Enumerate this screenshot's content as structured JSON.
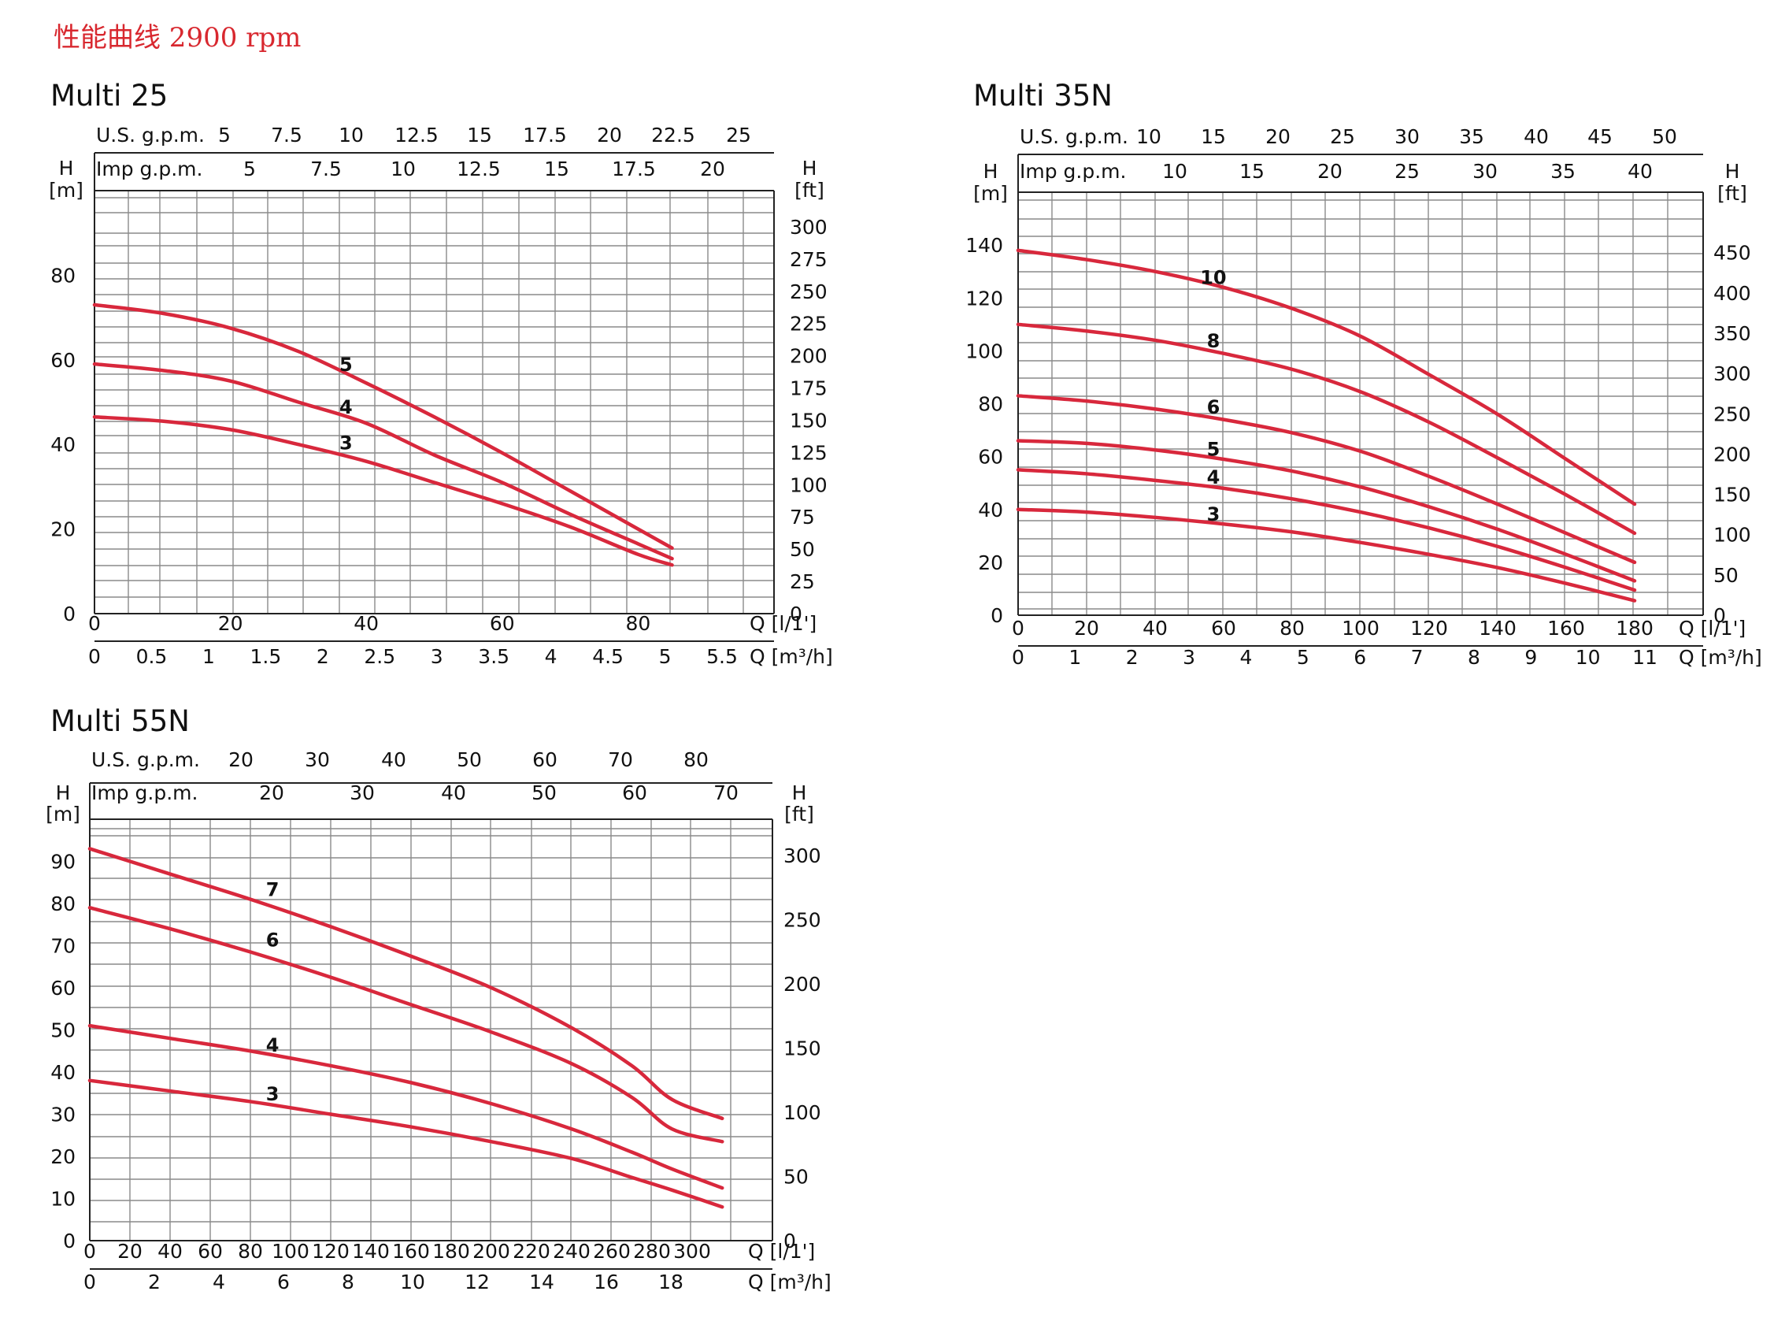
{
  "page_title": "性能曲线 2900 rpm",
  "colors": {
    "curve": "#d8283c",
    "grid": "#8a8a8a",
    "text": "#111111",
    "title": "#d8282f"
  },
  "chart_data": [
    {
      "type": "line",
      "title": "Multi 25",
      "ylabel_m": "H",
      "ylabel_m_unit": "[m]",
      "ylabel_ft": "H",
      "ylabel_ft_unit": "[ft]",
      "xlabel_lmin": "Q [l/1']",
      "xlabel_m3h": "Q [m³/h]",
      "usgpm_label": "U.S. g.p.m.",
      "impgpm_label": "Imp g.p.m.",
      "xlim": [
        0,
        100
      ],
      "ylim": [
        0,
        100
      ],
      "y_ticks_m": [
        "0",
        "20",
        "40",
        "60",
        "80"
      ],
      "y_ticks_m_values": [
        0,
        20,
        40,
        60,
        80
      ],
      "ft_ticks": [
        "0",
        "25",
        "50",
        "75",
        "100",
        "125",
        "150",
        "175",
        "200",
        "225",
        "250",
        "275",
        "300"
      ],
      "ft_ticks_values": [
        0,
        25,
        50,
        75,
        100,
        125,
        150,
        175,
        200,
        225,
        250,
        275,
        300
      ],
      "x_ticks_lmin": [
        "0",
        "20",
        "40",
        "60",
        "80"
      ],
      "x_ticks_lmin_values": [
        0,
        20,
        40,
        60,
        80
      ],
      "x_ticks_m3h": [
        "0",
        "0.5",
        "1",
        "1.5",
        "2",
        "2.5",
        "3",
        "3.5",
        "4",
        "4.5",
        "5",
        "5.5"
      ],
      "x_ticks_m3h_values": [
        0,
        0.5,
        1,
        1.5,
        2,
        2.5,
        3,
        3.5,
        4,
        4.5,
        5,
        5.5
      ],
      "usgpm_ticks": [
        "5",
        "7.5",
        "10",
        "12.5",
        "15",
        "17.5",
        "20",
        "22.5",
        "25"
      ],
      "usgpm_ticks_values": [
        5,
        7.5,
        10,
        12.5,
        15,
        17.5,
        20,
        22.5,
        25
      ],
      "impgpm_ticks": [
        "5",
        "7.5",
        "10",
        "12.5",
        "15",
        "17.5",
        "20"
      ],
      "impgpm_ticks_values": [
        5,
        7.5,
        10,
        12.5,
        15,
        17.5,
        20
      ],
      "series": [
        {
          "name": "5",
          "label_at": [
            37,
            59
          ],
          "x": [
            0,
            10,
            20,
            30,
            40,
            50,
            60,
            70,
            80,
            85
          ],
          "y": [
            73,
            71,
            67.5,
            62,
            54.5,
            46.5,
            38,
            29,
            20,
            15.5
          ]
        },
        {
          "name": "4",
          "label_at": [
            37,
            49
          ],
          "x": [
            0,
            10,
            20,
            30,
            40,
            50,
            60,
            70,
            80,
            85
          ],
          "y": [
            59,
            57.5,
            55,
            50,
            45,
            37.5,
            31,
            23.5,
            16.5,
            13
          ]
        },
        {
          "name": "3",
          "label_at": [
            37,
            40.5
          ],
          "x": [
            0,
            10,
            20,
            30,
            40,
            50,
            60,
            70,
            80,
            85
          ],
          "y": [
            46.5,
            45.5,
            43.5,
            40,
            36,
            31,
            26,
            20.5,
            14,
            11.5
          ]
        }
      ]
    },
    {
      "type": "line",
      "title": "Multi 35N",
      "ylabel_m": "H",
      "ylabel_m_unit": "[m]",
      "ylabel_ft": "H",
      "ylabel_ft_unit": "[ft]",
      "xlabel_lmin": "Q [l/1']",
      "xlabel_m3h": "Q [m³/h]",
      "usgpm_label": "U.S. g.p.m.",
      "impgpm_label": "Imp g.p.m.",
      "xlim": [
        0,
        200
      ],
      "ylim": [
        0,
        160
      ],
      "y_ticks_m": [
        "0",
        "20",
        "40",
        "60",
        "80",
        "100",
        "120",
        "140"
      ],
      "y_ticks_m_values": [
        0,
        20,
        40,
        60,
        80,
        100,
        120,
        140
      ],
      "ft_ticks": [
        "0",
        "50",
        "100",
        "150",
        "200",
        "250",
        "300",
        "350",
        "400",
        "450"
      ],
      "ft_ticks_values": [
        0,
        50,
        100,
        150,
        200,
        250,
        300,
        350,
        400,
        450
      ],
      "x_ticks_lmin": [
        "0",
        "20",
        "40",
        "60",
        "80",
        "100",
        "120",
        "140",
        "160",
        "180"
      ],
      "x_ticks_lmin_values": [
        0,
        20,
        40,
        60,
        80,
        100,
        120,
        140,
        160,
        180
      ],
      "x_ticks_m3h": [
        "0",
        "1",
        "2",
        "3",
        "4",
        "5",
        "6",
        "7",
        "8",
        "9",
        "10",
        "11"
      ],
      "x_ticks_m3h_values": [
        0,
        1,
        2,
        3,
        4,
        5,
        6,
        7,
        8,
        9,
        10,
        11
      ],
      "usgpm_ticks": [
        "10",
        "15",
        "20",
        "25",
        "30",
        "35",
        "40",
        "45",
        "50"
      ],
      "usgpm_ticks_values": [
        10,
        15,
        20,
        25,
        30,
        35,
        40,
        45,
        50
      ],
      "impgpm_ticks": [
        "10",
        "15",
        "20",
        "25",
        "30",
        "35",
        "40"
      ],
      "impgpm_ticks_values": [
        10,
        15,
        20,
        25,
        30,
        35,
        40
      ],
      "series": [
        {
          "name": "10",
          "label_at": [
            57,
            128
          ],
          "x": [
            0,
            20,
            40,
            60,
            80,
            100,
            120,
            140,
            160,
            180
          ],
          "y": [
            138,
            134.5,
            130,
            124,
            116,
            105.5,
            91,
            76,
            59,
            42
          ]
        },
        {
          "name": "8",
          "label_at": [
            57,
            104
          ],
          "x": [
            0,
            20,
            40,
            60,
            80,
            100,
            120,
            140,
            160,
            180
          ],
          "y": [
            110,
            107.5,
            104,
            99,
            93,
            84.5,
            73,
            59.5,
            45.5,
            31
          ]
        },
        {
          "name": "6",
          "label_at": [
            57,
            79
          ],
          "x": [
            0,
            20,
            40,
            60,
            80,
            100,
            120,
            140,
            160,
            180
          ],
          "y": [
            83,
            81,
            78,
            74,
            69,
            62,
            52.5,
            42,
            31,
            20
          ]
        },
        {
          "name": "5",
          "label_at": [
            57,
            63
          ],
          "x": [
            0,
            20,
            40,
            60,
            80,
            100,
            120,
            140,
            160,
            180
          ],
          "y": [
            66,
            65,
            62.5,
            59,
            54.5,
            48.5,
            41,
            32.5,
            23,
            13
          ]
        },
        {
          "name": "4",
          "label_at": [
            57,
            52.5
          ],
          "x": [
            0,
            20,
            40,
            60,
            80,
            100,
            120,
            140,
            160,
            180
          ],
          "y": [
            55,
            53.5,
            51,
            48,
            44,
            39,
            33,
            26,
            18,
            9.5
          ]
        },
        {
          "name": "3",
          "label_at": [
            57,
            38.5
          ],
          "x": [
            0,
            20,
            40,
            60,
            80,
            100,
            120,
            140,
            160,
            180
          ],
          "y": [
            40,
            39,
            37,
            34.5,
            31.5,
            27.5,
            23,
            18,
            12,
            5.5
          ]
        }
      ]
    },
    {
      "type": "line",
      "title": "Multi 55N",
      "ylabel_m": "H",
      "ylabel_m_unit": "[m]",
      "ylabel_ft": "H",
      "ylabel_ft_unit": "[ft]",
      "xlabel_lmin": "Q [l/1']",
      "xlabel_m3h": "Q [m³/h]",
      "usgpm_label": "U.S. g.p.m.",
      "impgpm_label": "Imp g.p.m.",
      "xlim": [
        0,
        340
      ],
      "ylim": [
        0,
        100
      ],
      "y_ticks_m": [
        "0",
        "10",
        "20",
        "30",
        "40",
        "50",
        "60",
        "70",
        "80",
        "90"
      ],
      "y_ticks_m_values": [
        0,
        10,
        20,
        30,
        40,
        50,
        60,
        70,
        80,
        90
      ],
      "ft_ticks": [
        "0",
        "50",
        "100",
        "150",
        "200",
        "250",
        "300"
      ],
      "ft_ticks_values": [
        0,
        50,
        100,
        150,
        200,
        250,
        300
      ],
      "x_ticks_lmin": [
        "0",
        "20",
        "40",
        "60",
        "80",
        "100",
        "120",
        "140",
        "160",
        "180",
        "200",
        "220",
        "240",
        "260",
        "280",
        "300"
      ],
      "x_ticks_lmin_values": [
        0,
        20,
        40,
        60,
        80,
        100,
        120,
        140,
        160,
        180,
        200,
        220,
        240,
        260,
        280,
        300
      ],
      "x_ticks_m3h": [
        "0",
        "2",
        "4",
        "6",
        "8",
        "10",
        "12",
        "14",
        "16",
        "18"
      ],
      "x_ticks_m3h_values": [
        0,
        2,
        4,
        6,
        8,
        10,
        12,
        14,
        16,
        18
      ],
      "usgpm_ticks": [
        "20",
        "30",
        "40",
        "50",
        "60",
        "70",
        "80"
      ],
      "usgpm_ticks_values": [
        20,
        30,
        40,
        50,
        60,
        70,
        80
      ],
      "impgpm_ticks": [
        "20",
        "30",
        "40",
        "50",
        "60",
        "70"
      ],
      "impgpm_ticks_values": [
        20,
        30,
        40,
        50,
        60,
        70
      ],
      "series": [
        {
          "name": "7",
          "label_at": [
            91,
            83.5
          ],
          "x": [
            0,
            40,
            80,
            120,
            160,
            200,
            240,
            270,
            290,
            315
          ],
          "y": [
            93,
            87,
            81,
            74.5,
            67.5,
            60,
            50.5,
            41.5,
            33.5,
            29
          ]
        },
        {
          "name": "6",
          "label_at": [
            91,
            71.5
          ],
          "x": [
            0,
            40,
            80,
            120,
            160,
            200,
            240,
            270,
            290,
            315
          ],
          "y": [
            79,
            74,
            68.5,
            62.5,
            56,
            49.5,
            42,
            34,
            26.5,
            23.5
          ]
        },
        {
          "name": "4",
          "label_at": [
            91,
            46.5
          ],
          "x": [
            0,
            40,
            80,
            120,
            160,
            200,
            240,
            270,
            290,
            315
          ],
          "y": [
            51,
            48,
            45,
            41.5,
            37.5,
            32.5,
            26.5,
            21,
            17,
            12.5
          ]
        },
        {
          "name": "3",
          "label_at": [
            91,
            35
          ],
          "x": [
            0,
            40,
            80,
            120,
            160,
            200,
            240,
            270,
            290,
            315
          ],
          "y": [
            38,
            35.5,
            33,
            30,
            27,
            23.5,
            19.5,
            15,
            12,
            8
          ]
        }
      ]
    }
  ]
}
